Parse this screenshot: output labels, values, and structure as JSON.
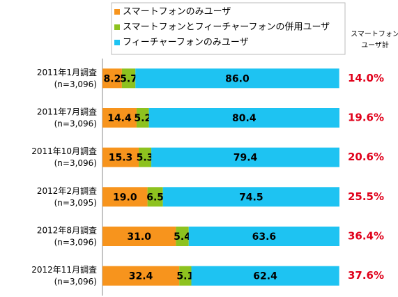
{
  "chart_data": {
    "type": "stacked-barh",
    "categories": [
      "2011年1月調査",
      "2011年7月調査",
      "2011年10月調査",
      "2012年2月調査",
      "2012年8月調査",
      "2012年11月調査"
    ],
    "category_notes": [
      "(n=3,096)",
      "(n=3,096)",
      "(n=3,096)",
      "(n=3,095)",
      "(n=3,096)",
      "(n=3,096)"
    ],
    "xlim": [
      0,
      100
    ],
    "series": [
      {
        "name": "スマートフォンのみユーザ",
        "color": "#f7941d",
        "values": [
          8.2,
          14.4,
          15.3,
          19.0,
          31.0,
          32.4
        ],
        "value_labels": [
          "8.2",
          "14.4",
          "15.3",
          "19.0",
          "31.0",
          "32.4"
        ]
      },
      {
        "name": "スマートフォンとフィーチャーフォンの併用ユーザ",
        "color": "#8dc21f",
        "values": [
          5.7,
          5.2,
          5.3,
          6.5,
          5.4,
          5.1
        ],
        "value_labels": [
          "5.7",
          "5.2",
          "5.3",
          "6.5",
          "5.4",
          "5.1"
        ]
      },
      {
        "name": "フィーチャーフォンのみユーザ",
        "color": "#1ec3f2",
        "values": [
          86.0,
          80.4,
          79.4,
          74.5,
          63.6,
          62.4
        ],
        "value_labels": [
          "86.0",
          "80.4",
          "79.4",
          "74.5",
          "63.6",
          "62.4"
        ]
      }
    ],
    "totals": {
      "title": [
        "スマートフォン",
        "ユーザ計"
      ],
      "color": "#e0001a",
      "values": [
        14.0,
        19.6,
        20.6,
        25.5,
        36.4,
        37.6
      ],
      "value_labels": [
        "14.0%",
        "19.6%",
        "20.6%",
        "25.5%",
        "36.4%",
        "37.6%"
      ]
    }
  }
}
